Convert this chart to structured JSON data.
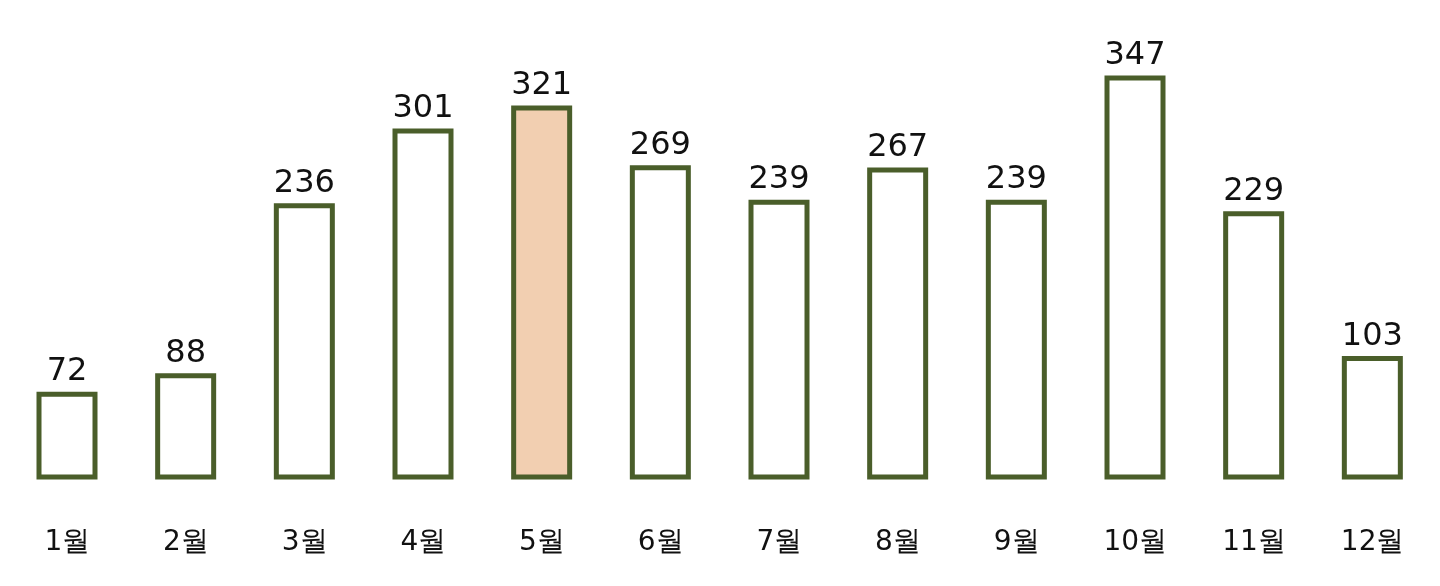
{
  "chart_data": {
    "type": "bar",
    "categories": [
      "1월",
      "2월",
      "3월",
      "4월",
      "5월",
      "6월",
      "7월",
      "8월",
      "9월",
      "10월",
      "11월",
      "12월"
    ],
    "values": [
      72,
      88,
      236,
      301,
      321,
      269,
      239,
      267,
      239,
      347,
      229,
      103
    ],
    "color": "#4a5e2a",
    "colors": [
      "#ffffff",
      "#ffffff",
      "#ffffff",
      "#ffffff",
      "#f2cfb1",
      "#ffffff",
      "#ffffff",
      "#ffffff",
      "#ffffff",
      "#ffffff",
      "#ffffff",
      "#ffffff"
    ],
    "data_labels": true,
    "grid": false,
    "legend": false
  }
}
